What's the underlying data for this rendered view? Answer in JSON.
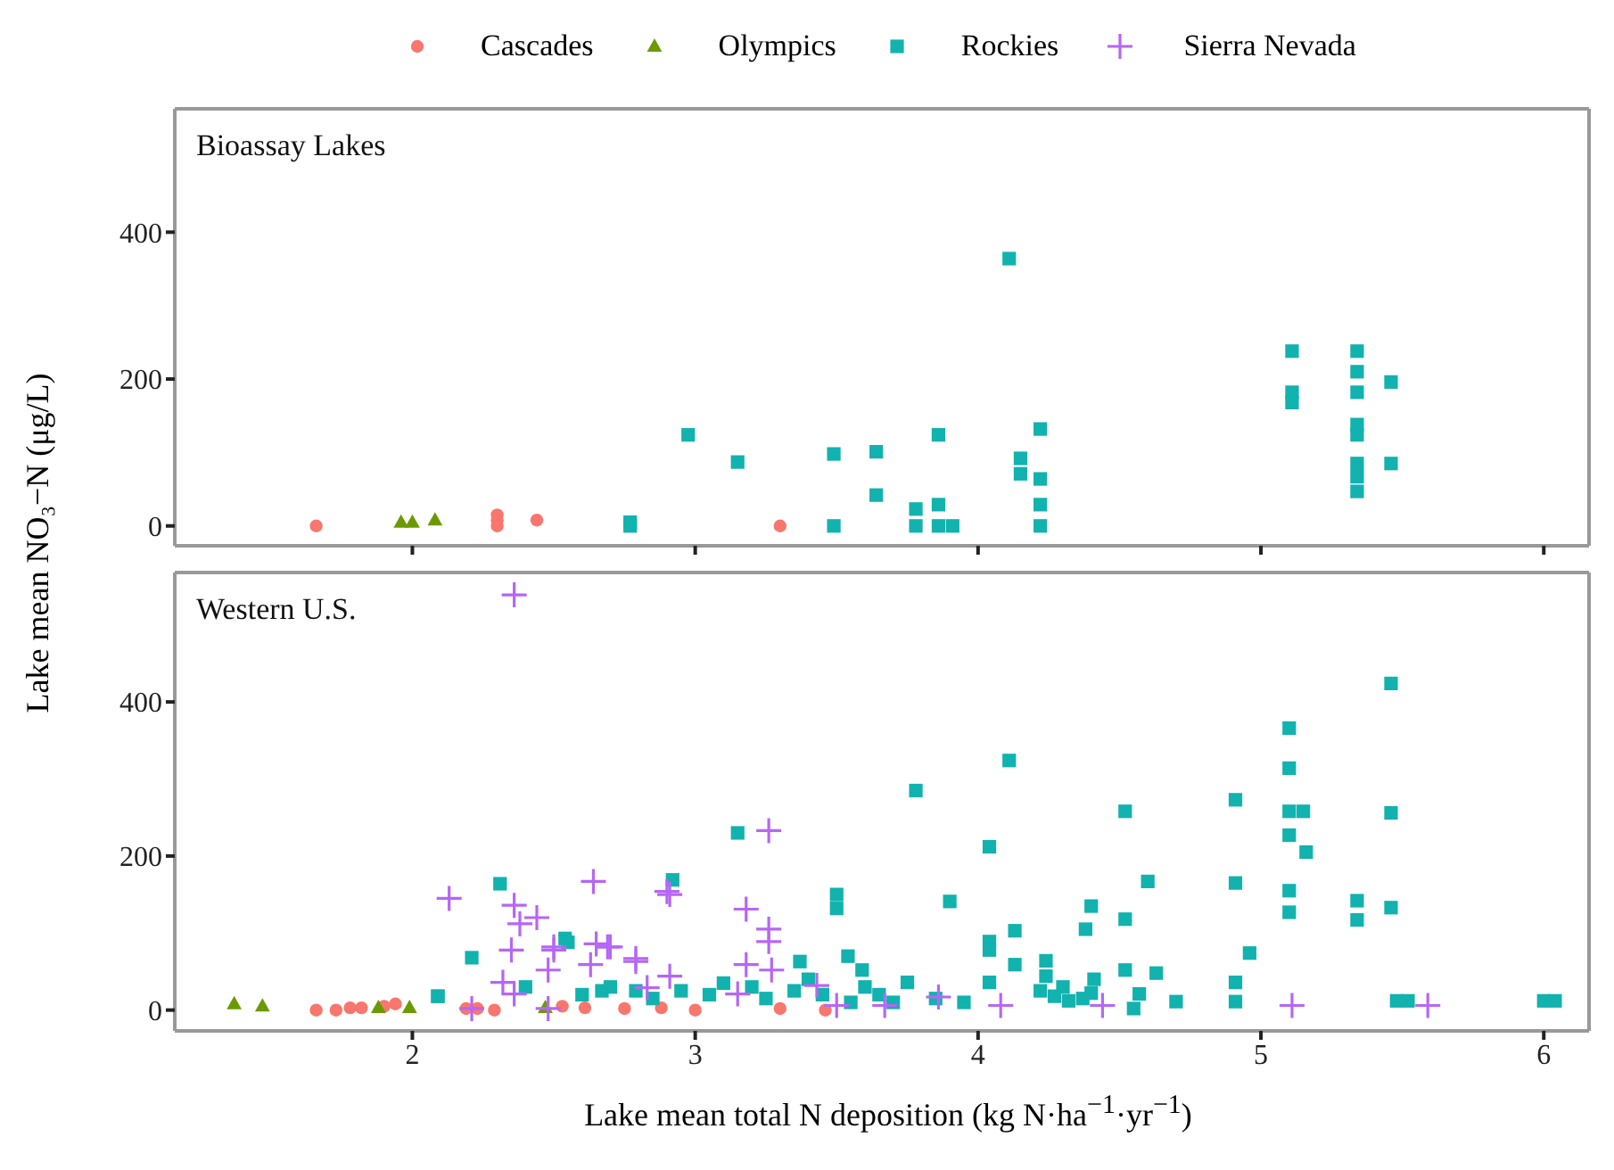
{
  "chart_data": [
    {
      "type": "scatter",
      "title": "Bioassay Lakes",
      "ylabel": "Lake mean NO₃−N (μg/L)",
      "legend": "top",
      "tick_labels": "y",
      "grid": false,
      "xlim": [
        1.16,
        6.16
      ],
      "xticks": [
        2,
        3,
        4,
        5,
        6
      ],
      "ylim": [
        -27,
        568
      ],
      "yticks": [
        0,
        200,
        400
      ],
      "series": [
        {
          "name": "Cascades",
          "color": "#f8766d",
          "marker": "circle",
          "x": [
            1.66,
            2.3,
            2.3,
            2.3,
            2.44,
            3.3
          ],
          "values": [
            0,
            0,
            8,
            15,
            8,
            0
          ]
        },
        {
          "name": "Olympics",
          "color": "#6b9a00",
          "marker": "triangle",
          "x": [
            1.96,
            2.0,
            2.08
          ],
          "values": [
            5,
            5,
            8
          ]
        },
        {
          "name": "Rockies",
          "color": "#12b2ae",
          "marker": "square",
          "x": [
            2.77,
            2.77,
            2.975,
            3.15,
            3.49,
            3.49,
            3.64,
            3.64,
            3.78,
            3.78,
            3.86,
            3.86,
            3.86,
            3.91,
            4.11,
            4.15,
            4.15,
            4.22,
            4.22,
            4.22,
            4.22,
            5.11,
            5.11,
            5.11,
            5.34,
            5.34,
            5.34,
            5.34,
            5.34,
            5.34,
            5.34,
            5.34,
            5.46,
            5.46
          ],
          "values": [
            0,
            5,
            124,
            87,
            98,
            0,
            101,
            42,
            23,
            0,
            124,
            29,
            0,
            0,
            364,
            92,
            71,
            132,
            64,
            29,
            0,
            238,
            182,
            168,
            238,
            210,
            182,
            138,
            124,
            85,
            67,
            47,
            196,
            85
          ]
        },
        {
          "name": "Sierra Nevada",
          "color": "#b666f5",
          "marker": "cross"
        }
      ]
    },
    {
      "type": "scatter",
      "title": "Western U.S.",
      "xlabel": "Lake mean total N deposition (kg N·ha$^{−1}$·yr$^{−1}$)",
      "grid": false,
      "xlim": [
        1.16,
        6.16
      ],
      "xticks": [
        2,
        3,
        4,
        5,
        6
      ],
      "ylim": [
        -27,
        568
      ],
      "yticks": [
        0,
        200,
        400
      ],
      "series": [
        {
          "color": "#f8766d",
          "marker": "circle",
          "x": [
            1.66,
            1.73,
            1.78,
            1.82,
            1.9,
            1.94,
            2.19,
            2.23,
            2.29,
            2.53,
            2.61,
            2.75,
            2.88,
            3.0,
            3.3,
            3.46
          ],
          "values": [
            0,
            0,
            3,
            3,
            5,
            8,
            2,
            2,
            0,
            5,
            3,
            2,
            3,
            0,
            2,
            0
          ]
        },
        {
          "color": "#6b9a00",
          "marker": "triangle",
          "x": [
            1.37,
            1.47,
            1.88,
            1.99,
            2.47
          ],
          "values": [
            8,
            5,
            3,
            3,
            3
          ]
        },
        {
          "color": "#12b2ae",
          "marker": "square",
          "x": [
            2.09,
            2.09,
            2.21,
            2.31,
            2.4,
            2.54,
            2.55,
            2.6,
            2.67,
            2.7,
            2.79,
            2.85,
            2.92,
            2.95,
            3.05,
            3.1,
            3.15,
            3.2,
            3.25,
            3.35,
            3.37,
            3.4,
            3.45,
            3.5,
            3.5,
            3.54,
            3.55,
            3.59,
            3.6,
            3.65,
            3.7,
            3.75,
            3.78,
            3.85,
            3.9,
            3.95,
            4.04,
            4.04,
            4.04,
            4.04,
            4.11,
            4.13,
            4.13,
            4.22,
            4.24,
            4.24,
            4.27,
            4.3,
            4.32,
            4.37,
            4.38,
            4.4,
            4.4,
            4.41,
            4.52,
            4.52,
            4.52,
            4.55,
            4.57,
            4.6,
            4.63,
            4.7,
            4.91,
            4.91,
            4.91,
            4.91,
            4.96,
            5.1,
            5.1,
            5.1,
            5.1,
            5.1,
            5.1,
            5.15,
            5.16,
            5.34,
            5.34,
            5.46,
            5.46,
            5.46,
            5.48,
            5.52,
            6.0,
            6.04
          ],
          "values": [
            18,
            18,
            68,
            164,
            30,
            93,
            88,
            20,
            25,
            30,
            25,
            15,
            169,
            25,
            20,
            35,
            230,
            30,
            15,
            25,
            63,
            40,
            20,
            150,
            132,
            70,
            10,
            52,
            30,
            20,
            10,
            36,
            285,
            15,
            141,
            10,
            212,
            89,
            78,
            36,
            324,
            103,
            59,
            25,
            64,
            44,
            18,
            30,
            12,
            15,
            105,
            22,
            135,
            40,
            258,
            118,
            52,
            2,
            21,
            167,
            48,
            11,
            273,
            165,
            36,
            11,
            74,
            366,
            314,
            258,
            227,
            155,
            127,
            258,
            205,
            142,
            117,
            424,
            256,
            133,
            12,
            12,
            12,
            12
          ]
        },
        {
          "color": "#b666f5",
          "marker": "cross",
          "x": [
            2.13,
            2.21,
            2.32,
            2.35,
            2.36,
            2.36,
            2.36,
            2.38,
            2.44,
            2.48,
            2.48,
            2.5,
            2.5,
            2.63,
            2.64,
            2.65,
            2.69,
            2.7,
            2.79,
            2.79,
            2.83,
            2.9,
            2.91,
            2.91,
            3.15,
            3.18,
            3.18,
            3.26,
            3.26,
            3.26,
            3.27,
            3.43,
            3.5,
            3.67,
            3.86,
            4.08,
            4.44,
            5.11,
            5.59
          ],
          "values": [
            145,
            2,
            36,
            78,
            539,
            136,
            21,
            112,
            120,
            52,
            2,
            78,
            82,
            59,
            167,
            86,
            82,
            82,
            63,
            67,
            29,
            154,
            150,
            44,
            21,
            131,
            59,
            233,
            105,
            89,
            52,
            32,
            6,
            6,
            17,
            6,
            6,
            6,
            6
          ]
        }
      ]
    }
  ]
}
